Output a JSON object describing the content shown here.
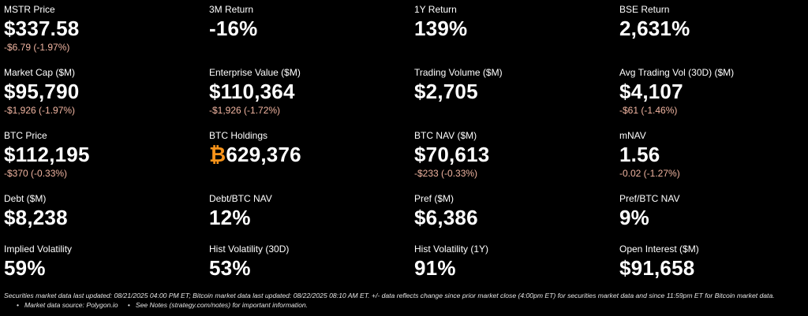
{
  "metrics": [
    {
      "label": "MSTR Price",
      "value": "$337.58",
      "change": "-$6.79 (-1.97%)"
    },
    {
      "label": "3M Return",
      "value": "-16%",
      "change": ""
    },
    {
      "label": "1Y Return",
      "value": "139%",
      "change": ""
    },
    {
      "label": "BSE Return",
      "value": "2,631%",
      "change": ""
    },
    {
      "label": "Market Cap ($M)",
      "value": "$95,790",
      "change": "-$1,926 (-1.97%)"
    },
    {
      "label": "Enterprise Value ($M)",
      "value": "$110,364",
      "change": "-$1,926 (-1.72%)"
    },
    {
      "label": "Trading Volume ($M)",
      "value": "$2,705",
      "change": ""
    },
    {
      "label": "Avg Trading Vol (30D) ($M)",
      "value": "$4,107",
      "change": "-$61 (-1.46%)"
    },
    {
      "label": "BTC Price",
      "value": "$112,195",
      "change": "-$370 (-0.33%)"
    },
    {
      "label": "BTC Holdings",
      "value": "629,376",
      "symbol": "₿",
      "change": ""
    },
    {
      "label": "BTC NAV ($M)",
      "value": "$70,613",
      "change": "-$233 (-0.33%)"
    },
    {
      "label": "mNAV",
      "value": "1.56",
      "change": "-0.02 (-1.27%)"
    },
    {
      "label": "Debt ($M)",
      "value": "$8,238",
      "change": ""
    },
    {
      "label": "Debt/BTC NAV",
      "value": "12%",
      "change": ""
    },
    {
      "label": "Pref ($M)",
      "value": "$6,386",
      "change": ""
    },
    {
      "label": "Pref/BTC NAV",
      "value": "9%",
      "change": ""
    },
    {
      "label": "Implied Volatility",
      "value": "59%",
      "change": ""
    },
    {
      "label": "Hist Volatility (30D)",
      "value": "53%",
      "change": ""
    },
    {
      "label": "Hist Volatility (1Y)",
      "value": "91%",
      "change": ""
    },
    {
      "label": "Open Interest ($M)",
      "value": "$91,658",
      "change": ""
    }
  ],
  "footer": {
    "note": "Securities market data last updated: 08/21/2025 04:00 PM ET; Bitcoin market data last updated: 08/22/2025 08:10 AM ET. +/- data reflects change since prior market close (4:00pm ET) for securities market data and since 11:59pm ET for Bitcoin market data.",
    "source_prefix": "Market data source: ",
    "source_link": "Polygon.io",
    "notes_prefix": "See Notes (",
    "notes_link": "strategy.com/notes",
    "notes_suffix": ") for important information."
  },
  "colors": {
    "background": "#000000",
    "text": "#ffffff",
    "negative_change": "#f0b4a0",
    "bitcoin": "#f7931a"
  }
}
